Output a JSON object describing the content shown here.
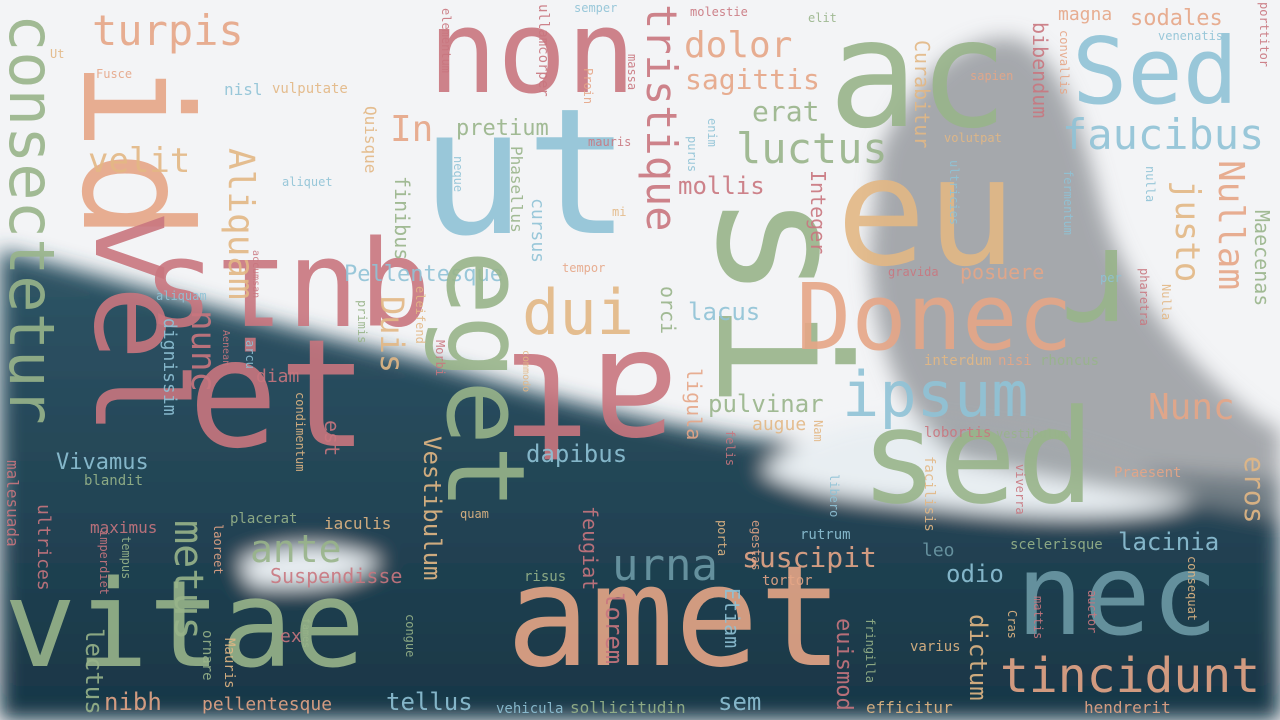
{
  "palette": {
    "rose": "#c9767f",
    "sand": "#e3b784",
    "sage": "#98b48a",
    "sky": "#8fc3d6",
    "peach": "#e6a687",
    "slate": "#6d9aa6",
    "dusk": "#b9757a"
  },
  "background": {
    "sky": "#f3f4f6",
    "water_top": "#2f5566",
    "water_bottom": "#183646",
    "ice": "#e8eef2",
    "rock": "#8b8f93"
  },
  "words": [
    {
      "text": "ac",
      "color": "sage"
    },
    {
      "text": "Sed",
      "color": "sky"
    },
    {
      "text": "non",
      "color": "rose"
    },
    {
      "text": "quis",
      "color": "rose"
    },
    {
      "text": "id",
      "color": "peach"
    },
    {
      "text": "consectetur",
      "color": "sage"
    },
    {
      "text": "turpis",
      "color": "peach"
    },
    {
      "text": "ut",
      "color": "sky"
    },
    {
      "text": "tristique",
      "color": "rose"
    },
    {
      "text": "dolor",
      "color": "peach"
    },
    {
      "text": "sagittis",
      "color": "peach"
    },
    {
      "text": "faucibus",
      "color": "sky"
    },
    {
      "text": "luctus",
      "color": "sage"
    },
    {
      "text": "eu",
      "color": "sand"
    },
    {
      "text": "velit",
      "color": "sand"
    },
    {
      "text": "In",
      "color": "peach"
    },
    {
      "text": "pretium",
      "color": "sage"
    },
    {
      "text": "erat",
      "color": "sage"
    },
    {
      "text": "mollis",
      "color": "rose"
    },
    {
      "text": "Nullam",
      "color": "peach"
    },
    {
      "text": "justo",
      "color": "sand"
    },
    {
      "text": "Maecenas",
      "color": "sage"
    },
    {
      "text": "si",
      "color": "sage"
    },
    {
      "text": "Donec",
      "color": "peach"
    },
    {
      "text": "Pellentesque",
      "color": "sky"
    },
    {
      "text": "dui",
      "color": "sand"
    },
    {
      "text": "lacus",
      "color": "sky"
    },
    {
      "text": "ipsum",
      "color": "sky"
    },
    {
      "text": "Nunc",
      "color": "peach"
    },
    {
      "text": "vel",
      "color": "rose"
    },
    {
      "text": "et",
      "color": "rose"
    },
    {
      "text": "eget",
      "color": "sage"
    },
    {
      "text": "at",
      "color": "rose"
    },
    {
      "text": "r",
      "color": "sage"
    },
    {
      "text": "sed",
      "color": "sage"
    },
    {
      "text": "vitae",
      "color": "sage"
    },
    {
      "text": "amet",
      "color": "peach"
    },
    {
      "text": "nec",
      "color": "slate"
    },
    {
      "text": "tincidunt",
      "color": "peach"
    },
    {
      "text": "urna",
      "color": "slate"
    },
    {
      "text": "suscipit",
      "color": "peach"
    },
    {
      "text": "pulvinar",
      "color": "sage"
    },
    {
      "text": "dapibus",
      "color": "sky"
    },
    {
      "text": "ante",
      "color": "sage"
    },
    {
      "text": "metus",
      "color": "sage"
    },
    {
      "text": "nunc",
      "color": "rose"
    },
    {
      "text": "Vivamus",
      "color": "sky"
    },
    {
      "text": "Aliquam",
      "color": "sand"
    },
    {
      "text": "Duis",
      "color": "sand"
    },
    {
      "text": "Vestibulum",
      "color": "sand"
    },
    {
      "text": "lorem",
      "color": "rose"
    },
    {
      "text": "euismod",
      "color": "rose"
    },
    {
      "text": "dictum",
      "color": "sand"
    },
    {
      "text": "odio",
      "color": "sky"
    },
    {
      "text": "lacinia",
      "color": "sky"
    },
    {
      "text": "eros",
      "color": "sand"
    },
    {
      "text": "lectus",
      "color": "sage"
    },
    {
      "text": "nibh",
      "color": "peach"
    },
    {
      "text": "tellus",
      "color": "sky"
    },
    {
      "text": "sem",
      "color": "sky"
    },
    {
      "text": "pellentesque",
      "color": "peach"
    },
    {
      "text": "sollicitudin",
      "color": "sage"
    },
    {
      "text": "efficitur",
      "color": "sand"
    },
    {
      "text": "hendrerit",
      "color": "peach"
    },
    {
      "text": "Suspendisse",
      "color": "rose"
    },
    {
      "text": "Integer",
      "color": "rose"
    },
    {
      "text": "Curabitur",
      "color": "sand"
    },
    {
      "text": "bibendum",
      "color": "rose"
    },
    {
      "text": "finibus",
      "color": "sage"
    },
    {
      "text": "cursus",
      "color": "sky"
    },
    {
      "text": "orci",
      "color": "sage"
    },
    {
      "text": "ligula",
      "color": "peach"
    },
    {
      "text": "Etiam",
      "color": "sky"
    },
    {
      "text": "feugiat",
      "color": "rose"
    },
    {
      "text": "magna",
      "color": "peach"
    },
    {
      "text": "sodales",
      "color": "peach"
    },
    {
      "text": "posuere",
      "color": "peach"
    },
    {
      "text": "leo",
      "color": "slate"
    },
    {
      "text": "augue",
      "color": "sand"
    },
    {
      "text": "diam",
      "color": "rose"
    },
    {
      "text": "Phasellus",
      "color": "sage"
    },
    {
      "text": "Quisque",
      "color": "sand"
    },
    {
      "text": "dignissim",
      "color": "sky"
    },
    {
      "text": "maximus",
      "color": "rose"
    },
    {
      "text": "placerat",
      "color": "sage"
    },
    {
      "text": "iaculis",
      "color": "sand"
    },
    {
      "text": "ultrices",
      "color": "rose"
    },
    {
      "text": "malesuada",
      "color": "rose"
    },
    {
      "text": "est",
      "color": "rose"
    },
    {
      "text": "rutrum",
      "color": "sky"
    },
    {
      "text": "tortor",
      "color": "peach"
    },
    {
      "text": "risus",
      "color": "sage"
    },
    {
      "text": "quam",
      "color": "sand"
    },
    {
      "text": "ex",
      "color": "rose"
    },
    {
      "text": "congue",
      "color": "sage"
    },
    {
      "text": "ornare",
      "color": "sage"
    },
    {
      "text": "Mauris",
      "color": "sand"
    },
    {
      "text": "fringilla",
      "color": "sage"
    },
    {
      "text": "varius",
      "color": "sand"
    },
    {
      "text": "mattis",
      "color": "rose"
    },
    {
      "text": "auctor",
      "color": "rose"
    },
    {
      "text": "consequat",
      "color": "sand"
    },
    {
      "text": "viverra",
      "color": "rose"
    },
    {
      "text": "scelerisque",
      "color": "sage"
    },
    {
      "text": "Praesent",
      "color": "peach"
    },
    {
      "text": "lobortis",
      "color": "rose"
    },
    {
      "text": "vestibulum",
      "color": "sage"
    },
    {
      "text": "interdum",
      "color": "sand"
    },
    {
      "text": "nisi",
      "color": "peach"
    },
    {
      "text": "rhoncus",
      "color": "sage"
    },
    {
      "text": "facilisis",
      "color": "sand"
    },
    {
      "text": "libero",
      "color": "sky"
    },
    {
      "text": "egestas",
      "color": "peach"
    },
    {
      "text": "porta",
      "color": "sand"
    },
    {
      "text": "felis",
      "color": "rose"
    },
    {
      "text": "Nam",
      "color": "sand"
    },
    {
      "text": "vehicula",
      "color": "sky"
    },
    {
      "text": "fames",
      "color": "sage"
    },
    {
      "text": "blandit",
      "color": "sage"
    },
    {
      "text": "condimentum",
      "color": "sand"
    },
    {
      "text": "laoreet",
      "color": "peach"
    },
    {
      "text": "imperdiet",
      "color": "rose"
    },
    {
      "text": "tempus",
      "color": "sage"
    },
    {
      "text": "Fusce",
      "color": "peach"
    },
    {
      "text": "Ut",
      "color": "sand"
    },
    {
      "text": "nisl",
      "color": "sky"
    },
    {
      "text": "vulputate",
      "color": "sand"
    },
    {
      "text": "elementum",
      "color": "rose"
    },
    {
      "text": "ullamcorper",
      "color": "rose"
    },
    {
      "text": "semper",
      "color": "sky"
    },
    {
      "text": "Proin",
      "color": "peach"
    },
    {
      "text": "massa",
      "color": "rose"
    },
    {
      "text": "molestie",
      "color": "rose"
    },
    {
      "text": "elit",
      "color": "sage"
    },
    {
      "text": "purus",
      "color": "sky"
    },
    {
      "text": "enim",
      "color": "sky"
    },
    {
      "text": "mauris",
      "color": "rose"
    },
    {
      "text": "aliquet",
      "color": "sky"
    },
    {
      "text": "neque",
      "color": "sky"
    },
    {
      "text": "mi",
      "color": "sand"
    },
    {
      "text": "tempor",
      "color": "peach"
    },
    {
      "text": "accumsan",
      "color": "rose"
    },
    {
      "text": "aliquam",
      "color": "sky"
    },
    {
      "text": "Aenean",
      "color": "rose"
    },
    {
      "text": "arcu",
      "color": "sky"
    },
    {
      "text": "eleifend",
      "color": "sand"
    },
    {
      "text": "Morbi",
      "color": "rose"
    },
    {
      "text": "primis",
      "color": "sage"
    },
    {
      "text": "commodo",
      "color": "sand"
    },
    {
      "text": "convallis",
      "color": "peach"
    },
    {
      "text": "sapien",
      "color": "peach"
    },
    {
      "text": "volutpat",
      "color": "sand"
    },
    {
      "text": "fermentum",
      "color": "sky"
    },
    {
      "text": "ultricies",
      "color": "sky"
    },
    {
      "text": "nulla",
      "color": "sky"
    },
    {
      "text": "gravida",
      "color": "rose"
    },
    {
      "text": "per",
      "color": "sky"
    },
    {
      "text": "pharetra",
      "color": "rose"
    },
    {
      "text": "Nulla",
      "color": "sand"
    },
    {
      "text": "venenatis",
      "color": "sky"
    },
    {
      "text": "porttitor",
      "color": "rose"
    },
    {
      "text": "Cras",
      "color": "sand"
    }
  ]
}
